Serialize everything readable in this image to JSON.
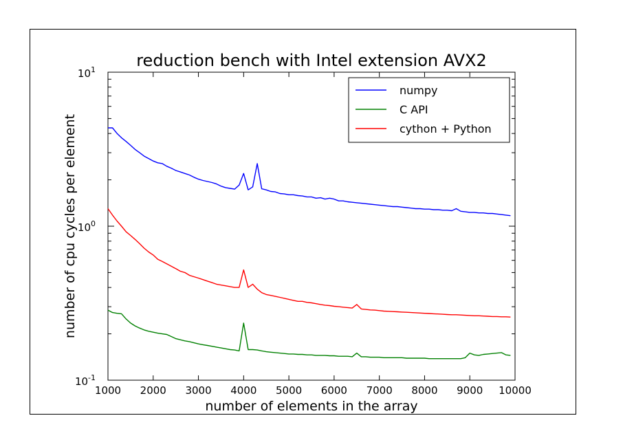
{
  "chart_data": {
    "type": "line",
    "title": "reduction bench with Intel extension AVX2",
    "xlabel": "number of elements in the array",
    "ylabel": "number of cpu cycles per element",
    "xlim": [
      1000,
      10000
    ],
    "ylim": [
      0.1,
      10
    ],
    "yscale": "log",
    "grid": false,
    "legend_position": "top-right",
    "x_ticks": [
      "1000",
      "2000",
      "3000",
      "4000",
      "5000",
      "6000",
      "7000",
      "8000",
      "9000",
      "10000"
    ],
    "x_tick_values": [
      1000,
      2000,
      3000,
      4000,
      5000,
      6000,
      7000,
      8000,
      9000,
      10000
    ],
    "y_ticks": [
      {
        "value": 0.1,
        "base": "10",
        "exp": "-1"
      },
      {
        "value": 1,
        "base": "10",
        "exp": "0"
      },
      {
        "value": 10,
        "base": "10",
        "exp": "1"
      }
    ],
    "x": [
      1000,
      1100,
      1200,
      1300,
      1400,
      1500,
      1600,
      1700,
      1800,
      1900,
      2000,
      2100,
      2200,
      2300,
      2400,
      2500,
      2600,
      2700,
      2800,
      2900,
      3000,
      3100,
      3200,
      3300,
      3400,
      3500,
      3600,
      3700,
      3800,
      3900,
      4000,
      4100,
      4200,
      4300,
      4400,
      4500,
      4600,
      4700,
      4800,
      4900,
      5000,
      5100,
      5200,
      5300,
      5400,
      5500,
      5600,
      5700,
      5800,
      5900,
      6000,
      6100,
      6200,
      6300,
      6400,
      6500,
      6600,
      6700,
      6800,
      6900,
      7000,
      7100,
      7200,
      7300,
      7400,
      7500,
      7600,
      7700,
      7800,
      7900,
      8000,
      8100,
      8200,
      8300,
      8400,
      8500,
      8600,
      8700,
      8800,
      8900,
      9000,
      9100,
      9200,
      9300,
      9400,
      9500,
      9600,
      9700,
      9800,
      9900
    ],
    "series": [
      {
        "name": "numpy",
        "color": "#0000ff",
        "values": [
          4.35,
          4.35,
          4.0,
          3.75,
          3.55,
          3.35,
          3.15,
          3.0,
          2.85,
          2.75,
          2.65,
          2.58,
          2.55,
          2.45,
          2.38,
          2.3,
          2.25,
          2.2,
          2.15,
          2.08,
          2.02,
          1.98,
          1.95,
          1.92,
          1.88,
          1.82,
          1.78,
          1.76,
          1.74,
          1.85,
          2.2,
          1.72,
          1.8,
          2.55,
          1.75,
          1.72,
          1.68,
          1.67,
          1.63,
          1.62,
          1.6,
          1.6,
          1.58,
          1.57,
          1.55,
          1.55,
          1.52,
          1.53,
          1.5,
          1.52,
          1.5,
          1.46,
          1.46,
          1.44,
          1.43,
          1.42,
          1.41,
          1.4,
          1.39,
          1.38,
          1.37,
          1.36,
          1.35,
          1.34,
          1.34,
          1.33,
          1.32,
          1.31,
          1.3,
          1.3,
          1.29,
          1.29,
          1.28,
          1.28,
          1.27,
          1.27,
          1.26,
          1.3,
          1.25,
          1.24,
          1.23,
          1.23,
          1.22,
          1.22,
          1.21,
          1.21,
          1.2,
          1.19,
          1.18,
          1.17
        ]
      },
      {
        "name": "C API",
        "color": "#008000",
        "values": [
          0.285,
          0.275,
          0.272,
          0.27,
          0.25,
          0.235,
          0.225,
          0.218,
          0.212,
          0.208,
          0.205,
          0.202,
          0.2,
          0.198,
          0.192,
          0.186,
          0.183,
          0.18,
          0.178,
          0.175,
          0.172,
          0.17,
          0.168,
          0.166,
          0.164,
          0.162,
          0.16,
          0.158,
          0.157,
          0.155,
          0.235,
          0.158,
          0.158,
          0.157,
          0.155,
          0.153,
          0.152,
          0.151,
          0.15,
          0.149,
          0.148,
          0.148,
          0.147,
          0.147,
          0.146,
          0.146,
          0.145,
          0.145,
          0.145,
          0.144,
          0.144,
          0.143,
          0.143,
          0.143,
          0.142,
          0.15,
          0.142,
          0.142,
          0.141,
          0.141,
          0.141,
          0.14,
          0.14,
          0.14,
          0.14,
          0.14,
          0.139,
          0.139,
          0.139,
          0.139,
          0.139,
          0.138,
          0.138,
          0.138,
          0.138,
          0.138,
          0.138,
          0.138,
          0.138,
          0.14,
          0.15,
          0.146,
          0.145,
          0.147,
          0.148,
          0.149,
          0.15,
          0.151,
          0.146,
          0.145
        ]
      },
      {
        "name": "cython + Python",
        "color": "#ff0000",
        "values": [
          1.3,
          1.18,
          1.08,
          1.0,
          0.92,
          0.87,
          0.82,
          0.77,
          0.72,
          0.68,
          0.65,
          0.61,
          0.59,
          0.57,
          0.55,
          0.53,
          0.51,
          0.5,
          0.48,
          0.47,
          0.46,
          0.45,
          0.44,
          0.43,
          0.42,
          0.415,
          0.41,
          0.405,
          0.4,
          0.4,
          0.52,
          0.4,
          0.42,
          0.39,
          0.37,
          0.36,
          0.355,
          0.35,
          0.345,
          0.34,
          0.335,
          0.33,
          0.325,
          0.325,
          0.32,
          0.318,
          0.314,
          0.31,
          0.307,
          0.305,
          0.302,
          0.3,
          0.298,
          0.296,
          0.294,
          0.31,
          0.29,
          0.288,
          0.286,
          0.285,
          0.283,
          0.281,
          0.28,
          0.279,
          0.278,
          0.277,
          0.276,
          0.275,
          0.274,
          0.273,
          0.272,
          0.271,
          0.27,
          0.269,
          0.268,
          0.267,
          0.266,
          0.266,
          0.265,
          0.264,
          0.263,
          0.262,
          0.262,
          0.261,
          0.26,
          0.259,
          0.259,
          0.258,
          0.258,
          0.257
        ]
      }
    ]
  }
}
